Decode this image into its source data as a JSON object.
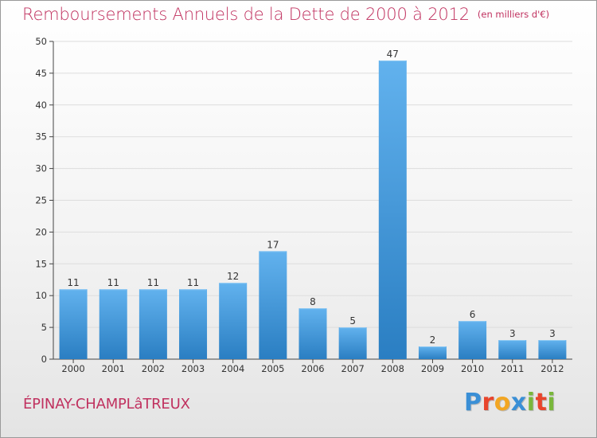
{
  "header": {
    "title": "Remboursements Annuels de la Dette de 2000 à 2012",
    "unit": "(en milliers d'€)"
  },
  "footer": {
    "commune": "ÉPINAY-CHAMPLâTREUX",
    "logo": "Proxiti",
    "logo_colors": [
      "#3a8fd6",
      "#e8452c",
      "#f2a623",
      "#3a8fd6",
      "#79b73b",
      "#e8452c",
      "#79b73b"
    ]
  },
  "colors": {
    "title": "#c0315f",
    "bar_light": "#5eaeea",
    "bar_dark": "#2b7fc3",
    "grid": "#dddddd",
    "axis": "#444444"
  },
  "chart_data": {
    "type": "bar",
    "categories": [
      "2000",
      "2001",
      "2002",
      "2003",
      "2004",
      "2005",
      "2006",
      "2007",
      "2008",
      "2009",
      "2010",
      "2011",
      "2012"
    ],
    "values": [
      11,
      11,
      11,
      11,
      12,
      17,
      8,
      5,
      47,
      2,
      6,
      3,
      3
    ],
    "data_labels": [
      "11",
      "11",
      "11",
      "11",
      "12",
      "17",
      "8",
      "5",
      "47",
      "2",
      "6",
      "3",
      "3"
    ],
    "yticks": [
      0,
      5,
      10,
      15,
      20,
      25,
      30,
      35,
      40,
      45,
      50
    ],
    "ylim": [
      0,
      50
    ],
    "grid": true,
    "legend": "none"
  }
}
